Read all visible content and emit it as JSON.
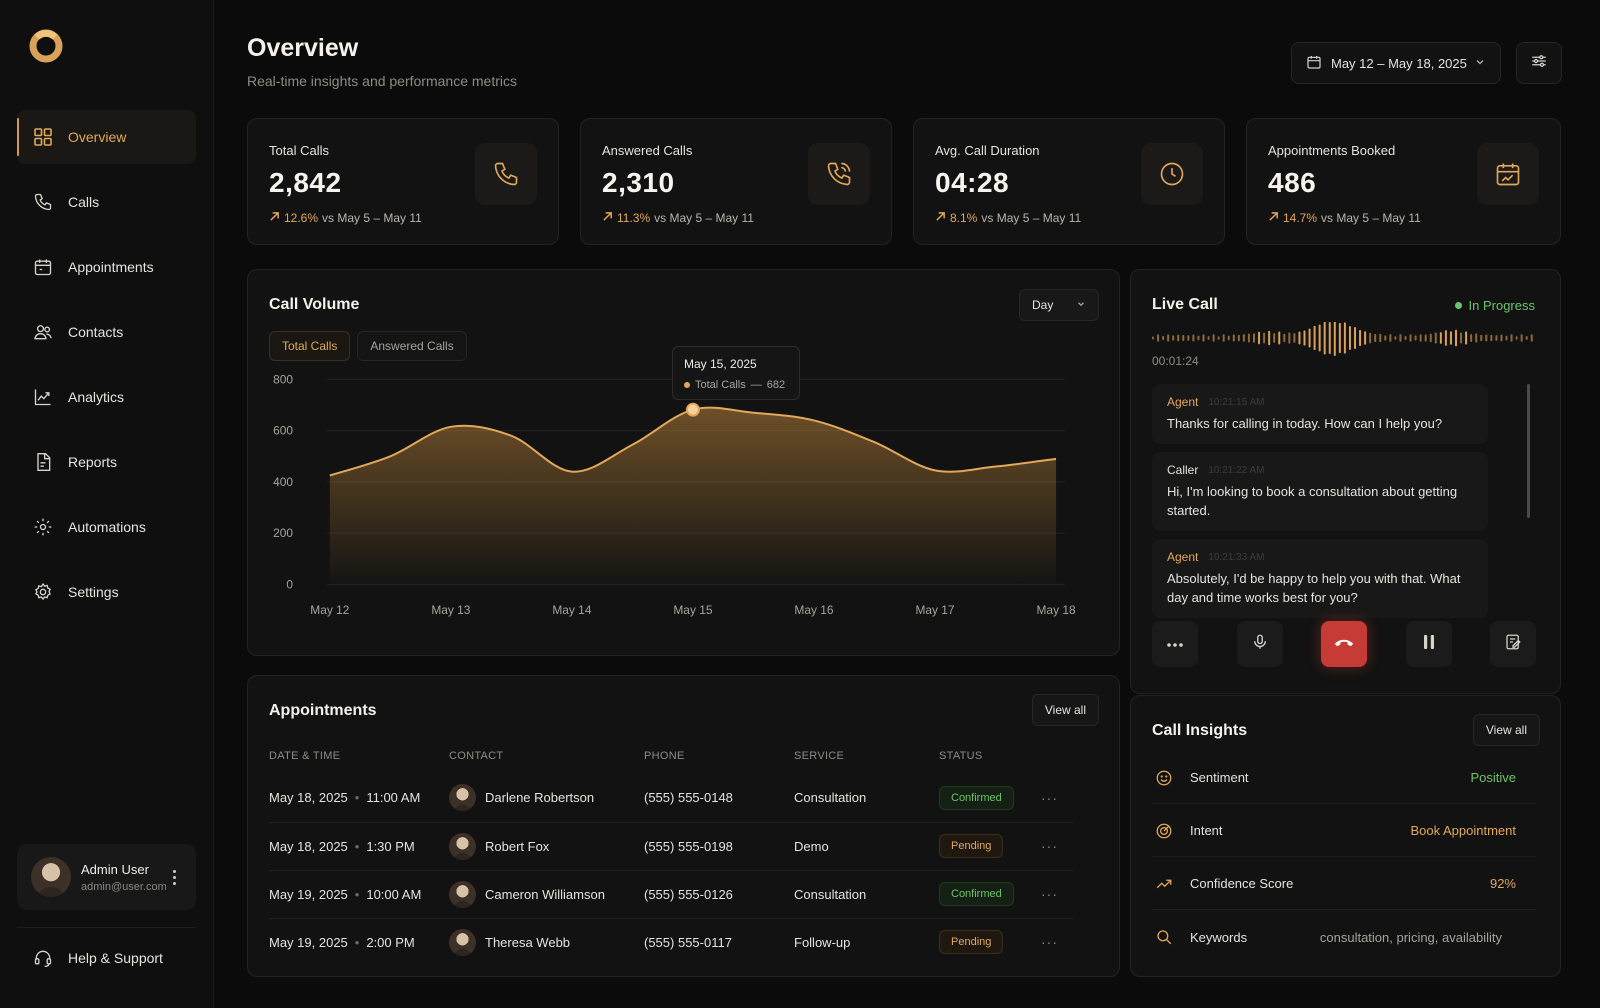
{
  "sidebar": {
    "items": [
      {
        "label": "Overview",
        "icon": "grid-icon",
        "active": true
      },
      {
        "label": "Calls",
        "icon": "phone-icon"
      },
      {
        "label": "Appointments",
        "icon": "calendar-icon"
      },
      {
        "label": "Contacts",
        "icon": "users-icon"
      },
      {
        "label": "Analytics",
        "icon": "chart-line-icon"
      },
      {
        "label": "Reports",
        "icon": "document-icon"
      },
      {
        "label": "Automations",
        "icon": "automation-gear-icon"
      },
      {
        "label": "Settings",
        "icon": "settings-gear-icon"
      }
    ],
    "user": {
      "name": "Admin User",
      "email": "admin@user.com"
    },
    "help_label": "Help & Support"
  },
  "header": {
    "title": "Overview",
    "subtitle": "Real-time insights and performance metrics",
    "date_range": "May 12 – May 18, 2025"
  },
  "stats": [
    {
      "label": "Total Calls",
      "value": "2,842",
      "pct": "12.6%",
      "compare": "vs May 5 – May 11",
      "icon": "phone-icon"
    },
    {
      "label": "Answered Calls",
      "value": "2,310",
      "pct": "11.3%",
      "compare": "vs May 5 – May 11",
      "icon": "phone-ringing-icon"
    },
    {
      "label": "Avg. Call Duration",
      "value": "04:28",
      "pct": "8.1%",
      "compare": "vs May 5 – May 11",
      "icon": "clock-icon"
    },
    {
      "label": "Appointments Booked",
      "value": "486",
      "pct": "14.7%",
      "compare": "vs May 5 – May 11",
      "icon": "calendar-chart-icon"
    }
  ],
  "call_volume": {
    "title": "Call Volume",
    "period": "Day",
    "toggles": [
      "Total Calls",
      "Answered Calls"
    ],
    "tooltip": {
      "date": "May 15, 2025",
      "series": "Total Calls",
      "value": "682"
    }
  },
  "chart_data": {
    "type": "area",
    "title": "Call Volume",
    "x": [
      "May 12",
      "May 13",
      "May 14",
      "May 15",
      "May 16",
      "May 17",
      "May 18"
    ],
    "x_ticks": [
      "May 12",
      "May 13",
      "May 14",
      "May 15",
      "May 16",
      "May 17",
      "May 18"
    ],
    "series": [
      {
        "name": "Total Calls",
        "x": [
          0,
          0.5,
          1.0,
          1.5,
          2.0,
          2.5,
          3.0,
          3.5,
          4.0,
          4.5,
          5.0,
          5.5,
          6.0
        ],
        "y": [
          425,
          500,
          615,
          580,
          440,
          545,
          682,
          670,
          640,
          555,
          445,
          460,
          490
        ]
      }
    ],
    "highlight": {
      "x": "May 15",
      "y": 682
    },
    "ylim": [
      0,
      800
    ],
    "y_ticks": [
      0,
      200,
      400,
      600,
      800
    ],
    "grid": true,
    "colors": {
      "line": "#e2a85a"
    }
  },
  "appointments": {
    "title": "Appointments",
    "view_all": "View all",
    "columns": [
      "DATE & TIME",
      "CONTACT",
      "PHONE",
      "SERVICE",
      "STATUS"
    ],
    "rows": [
      {
        "date": "May 18, 2025",
        "time": "11:00 AM",
        "contact": "Darlene Robertson",
        "phone": "(555) 555-0148",
        "service": "Consultation",
        "status": "Confirmed"
      },
      {
        "date": "May 18, 2025",
        "time": "1:30 PM",
        "contact": "Robert Fox",
        "phone": "(555) 555-0198",
        "service": "Demo",
        "status": "Pending"
      },
      {
        "date": "May 19, 2025",
        "time": "10:00 AM",
        "contact": "Cameron Williamson",
        "phone": "(555) 555-0126",
        "service": "Consultation",
        "status": "Confirmed"
      },
      {
        "date": "May 19, 2025",
        "time": "2:00 PM",
        "contact": "Theresa Webb",
        "phone": "(555) 555-0117",
        "service": "Follow-up",
        "status": "Pending"
      }
    ]
  },
  "live_call": {
    "title": "Live Call",
    "status": "In Progress",
    "timer": "00:01:24",
    "transcript": [
      {
        "speaker": "Agent",
        "time": "10:21:15 AM",
        "text": "Thanks for calling in today. How can I help you?"
      },
      {
        "speaker": "Caller",
        "time": "10:21:22 AM",
        "text": "Hi, I'm looking to book a consultation about getting started."
      },
      {
        "speaker": "Agent",
        "time": "10:21:33 AM",
        "text": "Absolutely, I'd be happy to help you with that. What day and time works best for you?"
      }
    ]
  },
  "insights": {
    "title": "Call Insights",
    "view_all": "View all",
    "rows": [
      {
        "label": "Sentiment",
        "value": "Positive",
        "icon": "smile-icon"
      },
      {
        "label": "Intent",
        "value": "Book Appointment",
        "icon": "target-icon"
      },
      {
        "label": "Confidence Score",
        "value": "92%",
        "icon": "trend-icon"
      },
      {
        "label": "Keywords",
        "value": "consultation, pricing, availability",
        "icon": "search-icon"
      }
    ]
  },
  "colors": {
    "accent": "#e2a85a",
    "success": "#6cc46a",
    "danger": "#c63b36",
    "background": "#0b0b0b"
  }
}
